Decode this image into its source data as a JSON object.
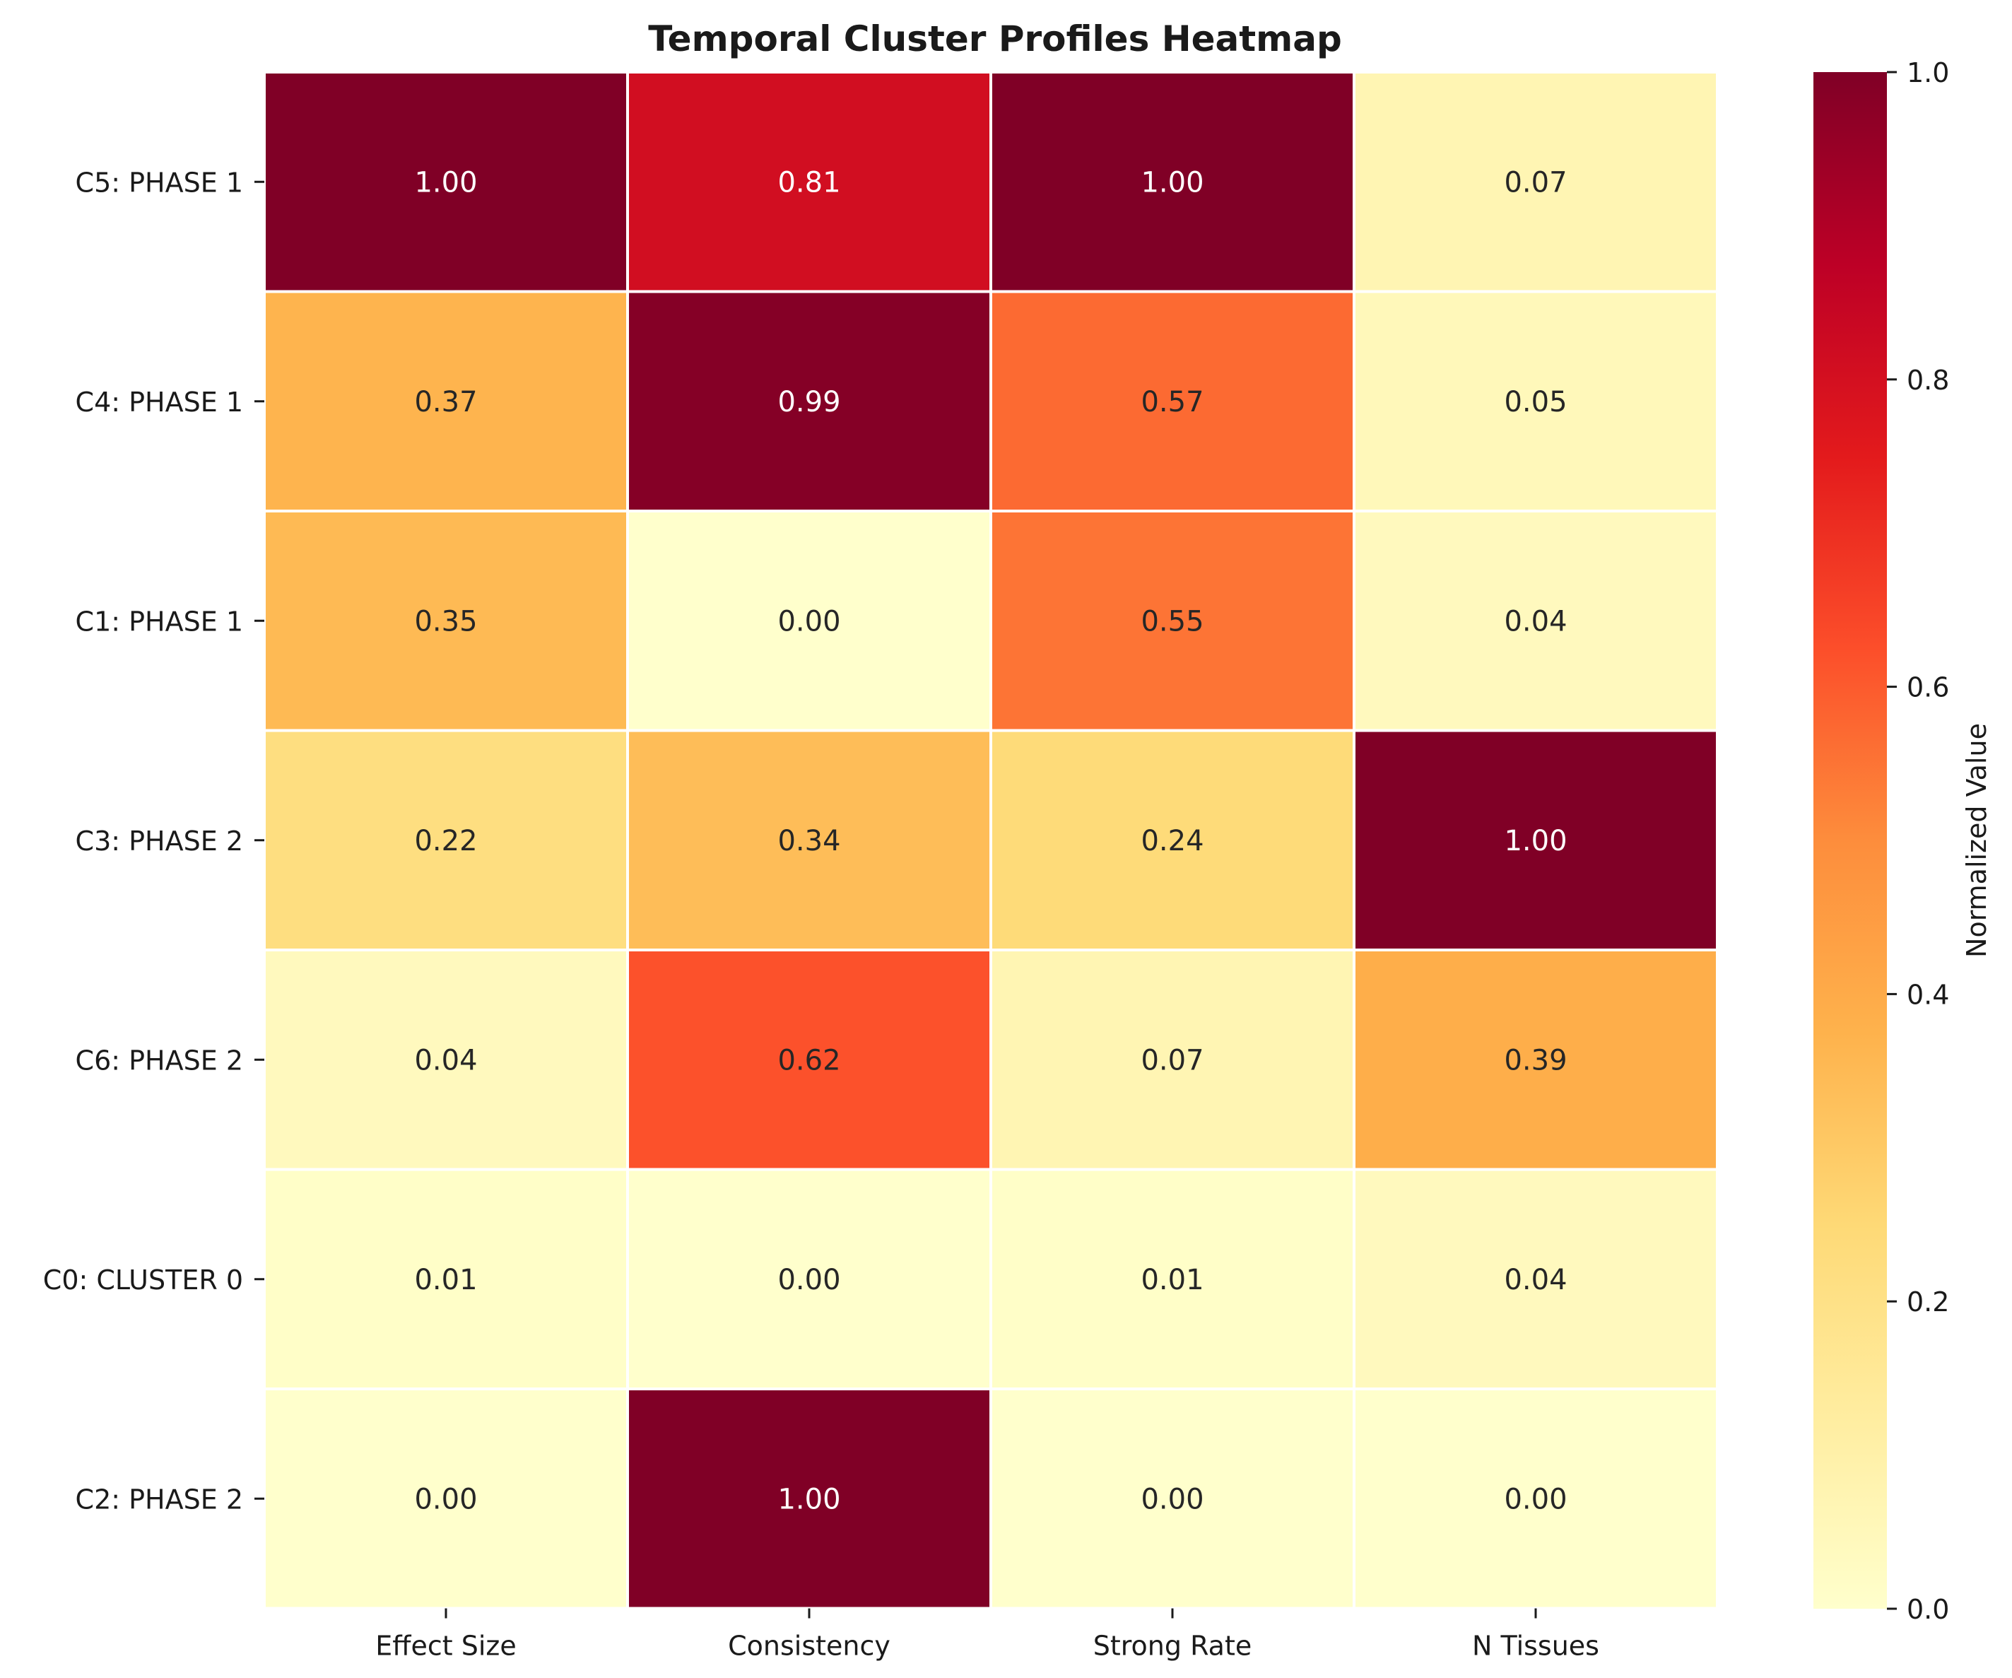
{
  "chart_data": {
    "type": "heatmap",
    "title": "Temporal Cluster Profiles Heatmap",
    "xlabel": "",
    "ylabel": "",
    "columns": [
      "Effect Size",
      "Consistency",
      "Strong Rate",
      "N Tissues"
    ],
    "rows": [
      "C5: PHASE 1",
      "C4: PHASE 1",
      "C1: PHASE 1",
      "C3: PHASE 2",
      "C6: PHASE 2",
      "C0: CLUSTER 0",
      "C2: PHASE 2"
    ],
    "values": [
      [
        1.0,
        0.81,
        1.0,
        0.07
      ],
      [
        0.37,
        0.99,
        0.57,
        0.05
      ],
      [
        0.35,
        0.0,
        0.55,
        0.04
      ],
      [
        0.22,
        0.34,
        0.24,
        1.0
      ],
      [
        0.04,
        0.62,
        0.07,
        0.39
      ],
      [
        0.01,
        0.0,
        0.01,
        0.04
      ],
      [
        0.0,
        1.0,
        0.0,
        0.0
      ]
    ],
    "value_format": "2 decimals",
    "colormap": "YlOrRd",
    "colormap_stops": [
      "#ffffcc",
      "#ffeda0",
      "#fed976",
      "#feb24c",
      "#fd8d3c",
      "#fc4e2a",
      "#e31a1c",
      "#bd0026",
      "#800026"
    ],
    "colorbar": {
      "label": "Normalized Value",
      "range": [
        0.0,
        1.0
      ],
      "ticks": [
        0.0,
        0.2,
        0.4,
        0.6,
        0.8,
        1.0
      ],
      "tick_labels": [
        "0.0",
        "0.2",
        "0.4",
        "0.6",
        "0.8",
        "1.0"
      ],
      "placement": "right"
    },
    "cell_border_color": "#ffffff",
    "grid": false
  }
}
